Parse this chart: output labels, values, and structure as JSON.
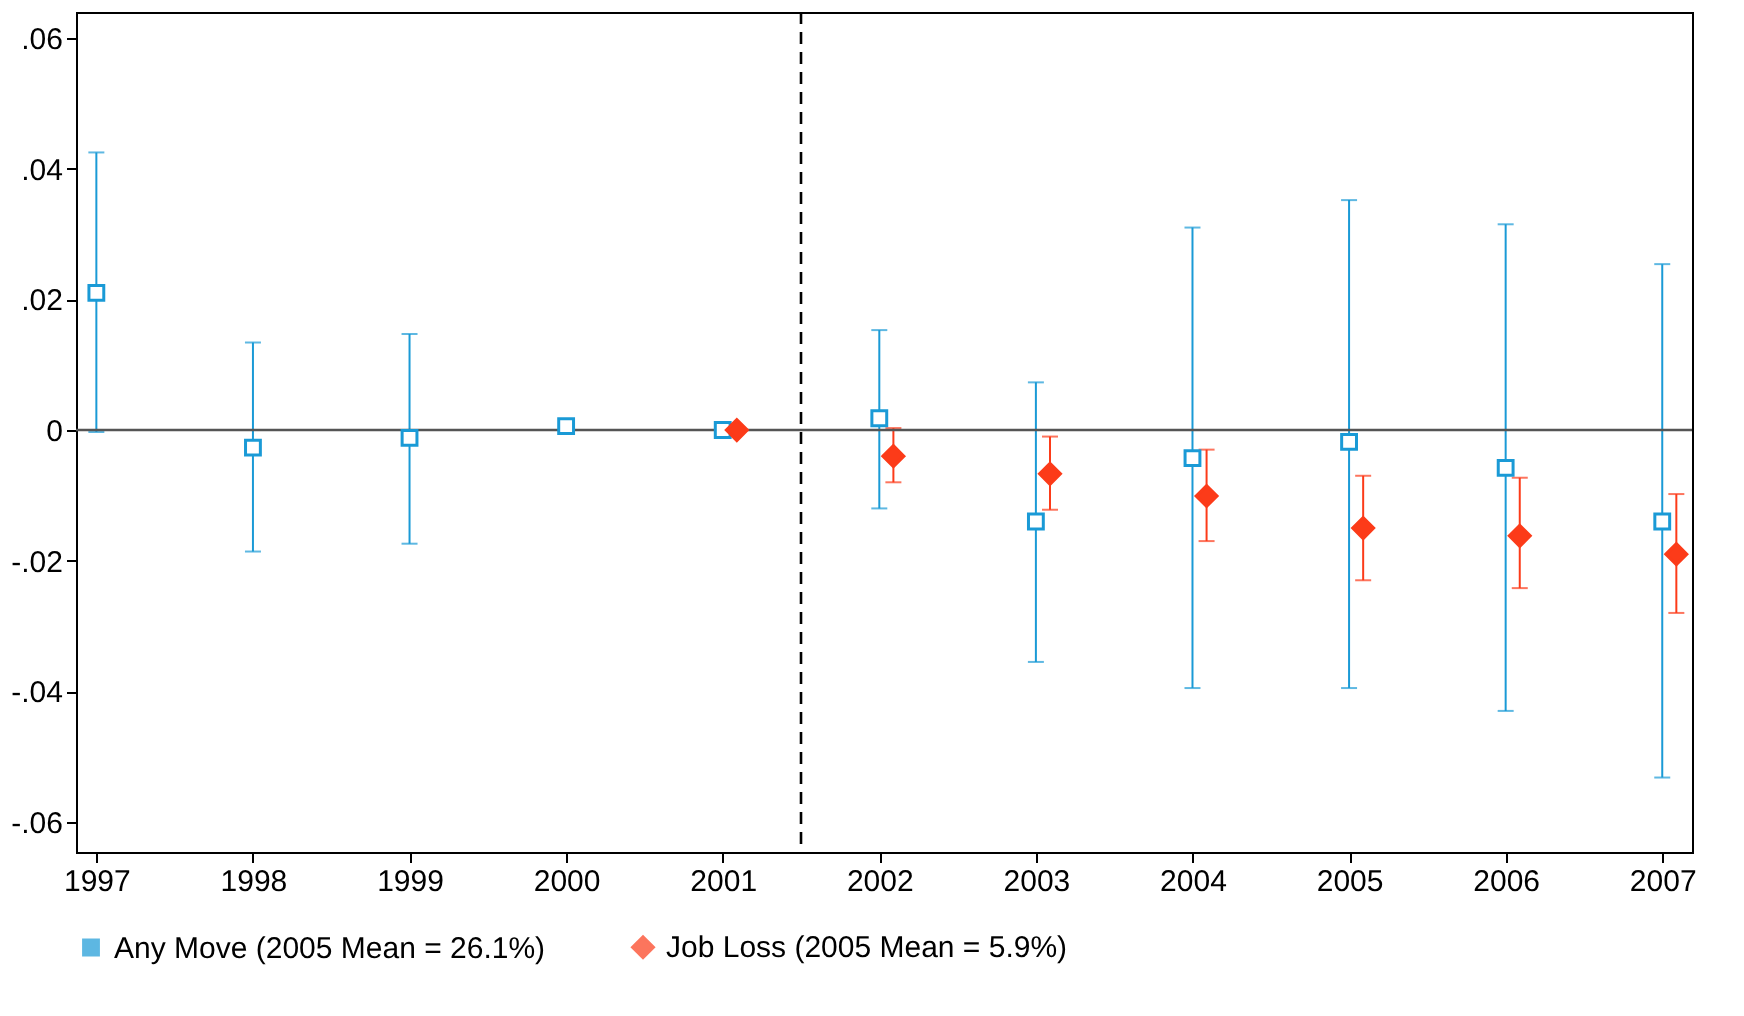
{
  "chart_data": {
    "type": "scatter",
    "xlim": [
      1996.87,
      2007.19
    ],
    "xticks": [
      1997,
      1998,
      1999,
      2000,
      2001,
      2002,
      2003,
      2004,
      2005,
      2006,
      2007
    ],
    "ylim": [
      -0.0646,
      0.064
    ],
    "yticks": [
      {
        "value": -0.06,
        "label": "-.06"
      },
      {
        "value": -0.04,
        "label": "-.04"
      },
      {
        "value": -0.02,
        "label": "-.02"
      },
      {
        "value": 0,
        "label": "0"
      },
      {
        "value": 0.02,
        "label": ".02"
      },
      {
        "value": 0.04,
        "label": ".04"
      },
      {
        "value": 0.06,
        "label": ".06"
      }
    ],
    "legend": "bottom",
    "grid": false,
    "series": [
      {
        "name": "Any Move (2005 Mean = 26.1%)",
        "color": "#1a9ad6",
        "marker": "square",
        "x": [
          1997,
          1998,
          1999,
          2000,
          2001,
          2002,
          2003,
          2004,
          2005,
          2006,
          2007
        ],
        "values": [
          0.021,
          -0.0027,
          -0.0012,
          0.0006,
          0,
          0.0018,
          -0.014,
          -0.0043,
          -0.0018,
          -0.0058,
          -0.014
        ],
        "errors": [
          [
            -0.0003,
            0.0425
          ],
          [
            -0.0186,
            0.0134
          ],
          [
            -0.0174,
            0.0147
          ],
          null,
          null,
          [
            -0.012,
            0.0153
          ],
          [
            -0.0355,
            0.0073
          ],
          [
            -0.0395,
            0.031
          ],
          [
            -0.0395,
            0.0352
          ],
          [
            -0.043,
            0.0315
          ],
          [
            -0.0532,
            0.0254
          ]
        ]
      },
      {
        "name": "Job Loss (2005 Mean = 5.9%)",
        "color": "#fc3b19",
        "marker": "diamond",
        "x": [
          2001.09,
          2002.09,
          2003.09,
          2004.09,
          2005.09,
          2006.09,
          2007.09
        ],
        "values": [
          0,
          -0.004,
          -0.0067,
          -0.0101,
          -0.015,
          -0.0162,
          -0.019
        ],
        "errors": [
          null,
          [
            -0.008,
            0.0003
          ],
          [
            -0.0122,
            -0.001
          ],
          [
            -0.017,
            -0.003
          ],
          [
            -0.023,
            -0.007
          ],
          [
            -0.0242,
            -0.0073
          ],
          [
            -0.028,
            -0.0098
          ]
        ]
      }
    ],
    "ref_lines": [
      {
        "axis": "y",
        "value": 0,
        "color": "#555555",
        "line_style": "solid"
      },
      {
        "axis": "x",
        "value": 2001.5,
        "color": "#000000",
        "line_style": "dashed"
      }
    ]
  }
}
